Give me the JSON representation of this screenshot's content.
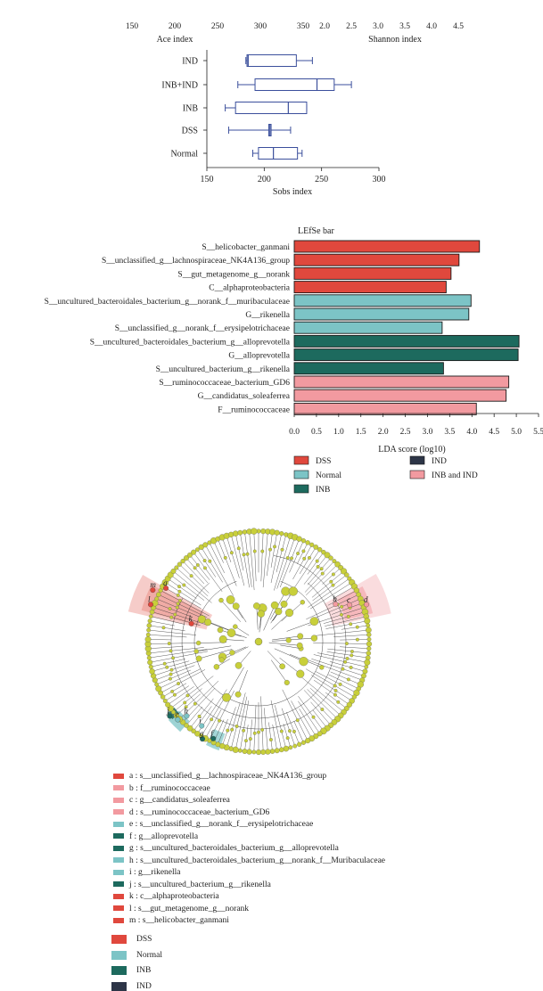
{
  "colors": {
    "box": "#3b4f9c",
    "DSS": "#e0483d",
    "Normal": "#7cc4c6",
    "INB": "#1d6a5e",
    "IND": "#2d3547",
    "INB_and_IND": "#f29aa0",
    "tree_node": "#c8cf3a"
  },
  "top_axes": {
    "ace": {
      "ticks": [
        "150",
        "200",
        "250",
        "300",
        "350"
      ],
      "label": "Ace index"
    },
    "shannon": {
      "ticks": [
        "2.0",
        "2.5",
        "3.0",
        "3.5",
        "4.0",
        "4.5"
      ],
      "label": "Shannon index"
    }
  },
  "chart_data": [
    {
      "type": "box",
      "title": "",
      "xlabel": "Sobs index",
      "xlim": [
        150,
        300
      ],
      "xticks": [
        "150",
        "200",
        "250",
        "300"
      ],
      "categories": [
        "IND",
        "INB+IND",
        "INB",
        "DSS",
        "Normal"
      ],
      "series": [
        {
          "name": "IND",
          "min": 184,
          "q1": 185,
          "median": 186,
          "q3": 228,
          "max": 242
        },
        {
          "name": "INB+IND",
          "min": 177,
          "q1": 192,
          "median": 246,
          "q3": 261,
          "max": 276
        },
        {
          "name": "INB",
          "min": 166,
          "q1": 175,
          "median": 221,
          "q3": 237,
          "max": 237
        },
        {
          "name": "DSS",
          "min": 169,
          "q1": 204,
          "median": 205,
          "q3": 206,
          "max": 223
        },
        {
          "name": "Normal",
          "min": 190,
          "q1": 195,
          "median": 208,
          "q3": 229,
          "max": 233
        }
      ]
    },
    {
      "type": "bar",
      "title": "LEfSe bar",
      "xlabel": "LDA score (log10)",
      "xlim": [
        0,
        5.5
      ],
      "xticks": [
        "0.0",
        "0.5",
        "1.0",
        "1.5",
        "2.0",
        "2.5",
        "3.0",
        "3.5",
        "4.0",
        "4.5",
        "5.0",
        "5.5"
      ],
      "categories": [
        "S__helicobacter_ganmani",
        "S__unclassified_g__lachnospiraceae_NK4A136_group",
        "S__gut_metagenome_g__norank",
        "C__alphaproteobacteria",
        "S__uncultured_bacteroidales_bacterium_g__norank_f__muribaculaceae",
        "G__rikenella",
        "S__unclassified_g__norank_f__erysipelotrichaceae",
        "S__uncultured_bacteroidales_bacterium_g__alloprevotella",
        "G__alloprevotella",
        "S__uncultured_bacterium_g__rikenella",
        "S__ruminococcaceae_bacterium_GD6",
        "G__candidatus_soleaferrea",
        "F__ruminococcaceae"
      ],
      "values": [
        4.17,
        3.71,
        3.53,
        3.42,
        3.98,
        3.93,
        3.33,
        5.06,
        5.04,
        3.36,
        4.83,
        4.77,
        4.1
      ],
      "groups": [
        "DSS",
        "DSS",
        "DSS",
        "DSS",
        "Normal",
        "Normal",
        "Normal",
        "INB",
        "INB",
        "INB",
        "INB_and_IND",
        "INB_and_IND",
        "INB_and_IND"
      ],
      "legend": [
        {
          "key": "DSS",
          "label": "DSS"
        },
        {
          "key": "IND",
          "label": "IND"
        },
        {
          "key": "Normal",
          "label": "Normal"
        },
        {
          "key": "INB_and_IND",
          "label": "INB and IND"
        },
        {
          "key": "INB",
          "label": "INB"
        }
      ]
    }
  ],
  "cladogram": {
    "markers": [
      "a",
      "b",
      "c",
      "d",
      "e",
      "f",
      "g",
      "h",
      "i",
      "j",
      "k",
      "l",
      "m"
    ],
    "legend": [
      {
        "text": "a : s__unclassified_g__lachnospiraceae_NK4A136_group",
        "group": "DSS"
      },
      {
        "text": "b : f__ruminococcaceae",
        "group": "INB_and_IND"
      },
      {
        "text": "c : g__candidatus_soleaferrea",
        "group": "INB_and_IND"
      },
      {
        "text": "d : s__ruminococcaceae_bacterium_GD6",
        "group": "INB_and_IND"
      },
      {
        "text": "e : s__unclassified_g__norank_f__erysipelotrichaceae",
        "group": "Normal"
      },
      {
        "text": "f : g__alloprevotella",
        "group": "INB"
      },
      {
        "text": "g : s__uncultured_bacteroidales_bacterium_g__alloprevotella",
        "group": "INB"
      },
      {
        "text": "h : s__uncultured_bacteroidales_bacterium_g__norank_f__Muribaculaceae",
        "group": "Normal"
      },
      {
        "text": "i : g__rikenella",
        "group": "Normal"
      },
      {
        "text": "j : s__uncultured_bacterium_g__rikenella",
        "group": "INB"
      },
      {
        "text": "k : c__alphaproteobacteria",
        "group": "DSS"
      },
      {
        "text": "l : s__gut_metagenome_g__norank",
        "group": "DSS"
      },
      {
        "text": "m : s__helicobacter_ganmani",
        "group": "DSS"
      }
    ],
    "group_legend": [
      {
        "key": "DSS",
        "label": "DSS"
      },
      {
        "key": "Normal",
        "label": "Normal"
      },
      {
        "key": "INB",
        "label": "INB"
      },
      {
        "key": "IND",
        "label": "IND"
      }
    ]
  }
}
